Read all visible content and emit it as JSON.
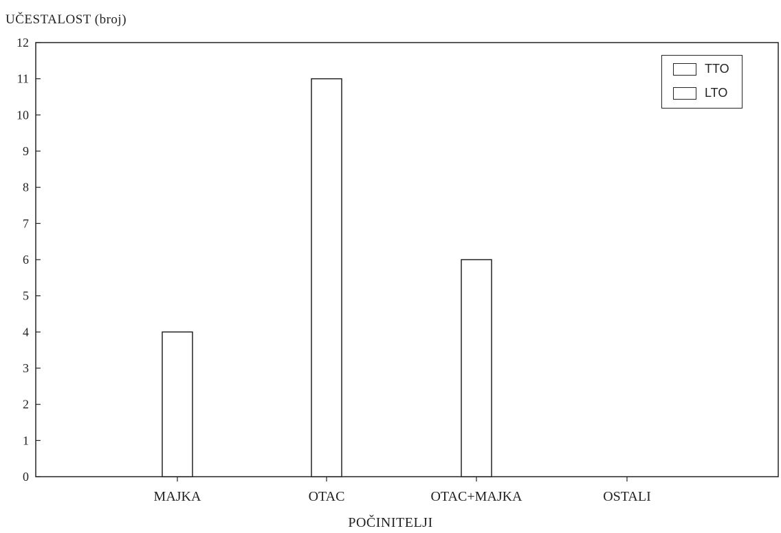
{
  "chart_data": {
    "type": "bar",
    "ylabel": "UČESTALOST (broj)",
    "xlabel": "POČINITELJI",
    "categories": [
      "MAJKA",
      "OTAC",
      "OTAC+MAJKA",
      "OSTALI"
    ],
    "series": [
      {
        "name": "TTO",
        "values": [
          0,
          0,
          0,
          0
        ]
      },
      {
        "name": "LTO",
        "values": [
          4,
          11,
          6,
          0
        ]
      }
    ],
    "ylim": [
      0,
      12
    ],
    "yticks": [
      0,
      1,
      2,
      3,
      4,
      5,
      6,
      7,
      8,
      9,
      10,
      11,
      12
    ],
    "grid": false,
    "legend_position": "top-right",
    "colors": {
      "bar_fill": "#ffffff",
      "bar_stroke": "#222222",
      "axis": "#222222"
    }
  }
}
